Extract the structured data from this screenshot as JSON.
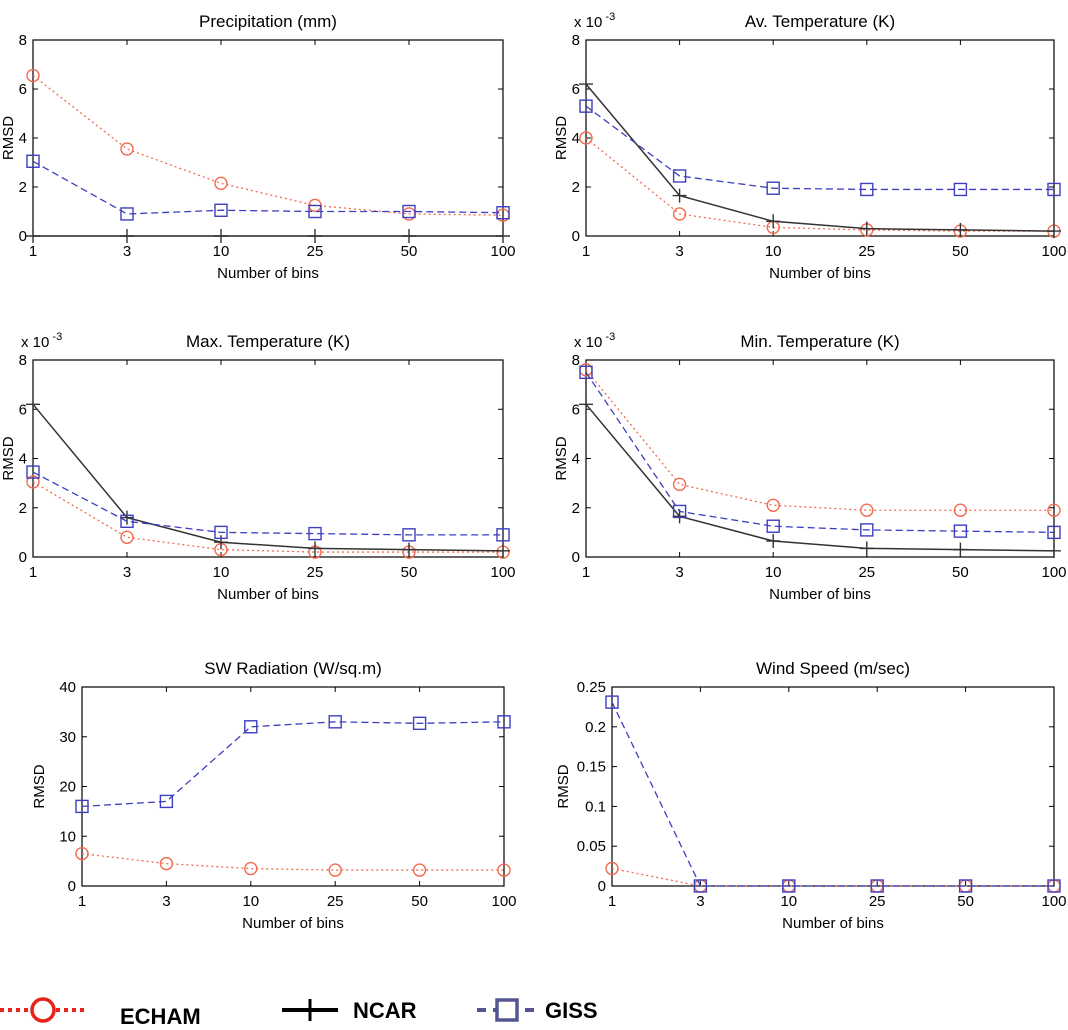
{
  "legend": {
    "items": [
      {
        "label": "ECHAM",
        "style": "echam"
      },
      {
        "label": "NCAR",
        "style": "ncar"
      },
      {
        "label": "GISS",
        "style": "giss"
      }
    ]
  },
  "series_styles": {
    "echam": {
      "color": "#f26b4f",
      "dash": "2,3",
      "marker": "circle"
    },
    "ncar": {
      "color": "#333333",
      "dash": "",
      "marker": "plus"
    },
    "giss": {
      "color": "#3b3fc0",
      "dash": "7,4",
      "marker": "square"
    }
  },
  "chart_data": [
    {
      "type": "line",
      "title": "Precipitation (mm)",
      "xlabel": "Number of bins",
      "ylabel": "RMSD",
      "exponent_label": "",
      "categories": [
        "1",
        "3",
        "10",
        "25",
        "50",
        "100"
      ],
      "ylim": [
        0,
        8
      ],
      "yticks": [
        0,
        2,
        4,
        6,
        8
      ],
      "yticklabels": [
        "0",
        "2",
        "4",
        "6",
        "8"
      ],
      "series": [
        {
          "style": "echam",
          "values": [
            6.55,
            3.55,
            2.15,
            1.25,
            0.9,
            0.85
          ]
        },
        {
          "style": "ncar",
          "values": [
            0,
            0,
            0,
            0,
            0,
            0
          ]
        },
        {
          "style": "giss",
          "values": [
            3.05,
            0.9,
            1.05,
            1.0,
            1.0,
            0.95
          ]
        }
      ]
    },
    {
      "type": "line",
      "title": "Av. Temperature (K)",
      "xlabel": "Number of bins",
      "ylabel": "RMSD",
      "exponent_label": "x 10",
      "exponent_power": "-3",
      "categories": [
        "1",
        "3",
        "10",
        "25",
        "50",
        "100"
      ],
      "ylim": [
        0,
        8
      ],
      "yticks": [
        0,
        2,
        4,
        6,
        8
      ],
      "yticklabels": [
        "0",
        "2",
        "4",
        "6",
        "8"
      ],
      "series": [
        {
          "style": "echam",
          "values": [
            4.0,
            0.9,
            0.35,
            0.25,
            0.2,
            0.2
          ]
        },
        {
          "style": "ncar",
          "values": [
            6.2,
            1.65,
            0.6,
            0.3,
            0.25,
            0.2
          ]
        },
        {
          "style": "giss",
          "values": [
            5.3,
            2.45,
            1.95,
            1.9,
            1.9,
            1.9
          ]
        }
      ]
    },
    {
      "type": "line",
      "title": "Max. Temperature (K)",
      "xlabel": "Number of bins",
      "ylabel": "RMSD",
      "exponent_label": "x 10",
      "exponent_power": "-3",
      "categories": [
        "1",
        "3",
        "10",
        "25",
        "50",
        "100"
      ],
      "ylim": [
        0,
        8
      ],
      "yticks": [
        0,
        2,
        4,
        6,
        8
      ],
      "yticklabels": [
        "0",
        "2",
        "4",
        "6",
        "8"
      ],
      "series": [
        {
          "style": "echam",
          "values": [
            3.05,
            0.8,
            0.3,
            0.2,
            0.2,
            0.2
          ]
        },
        {
          "style": "ncar",
          "values": [
            6.2,
            1.6,
            0.6,
            0.35,
            0.3,
            0.25
          ]
        },
        {
          "style": "giss",
          "values": [
            3.45,
            1.45,
            1.0,
            0.95,
            0.9,
            0.9
          ]
        }
      ]
    },
    {
      "type": "line",
      "title": "Min. Temperature (K)",
      "xlabel": "Number of bins",
      "ylabel": "RMSD",
      "exponent_label": "x 10",
      "exponent_power": "-3",
      "categories": [
        "1",
        "3",
        "10",
        "25",
        "50",
        "100"
      ],
      "ylim": [
        0,
        8
      ],
      "yticks": [
        0,
        2,
        4,
        6,
        8
      ],
      "yticklabels": [
        "0",
        "2",
        "4",
        "6",
        "8"
      ],
      "series": [
        {
          "style": "echam",
          "values": [
            7.6,
            2.95,
            2.1,
            1.9,
            1.9,
            1.9
          ]
        },
        {
          "style": "ncar",
          "values": [
            6.2,
            1.65,
            0.65,
            0.35,
            0.3,
            0.25
          ]
        },
        {
          "style": "giss",
          "values": [
            7.5,
            1.85,
            1.25,
            1.1,
            1.05,
            1.0
          ]
        }
      ]
    },
    {
      "type": "line",
      "title": "SW Radiation (W/sq.m)",
      "xlabel": "Number of bins",
      "ylabel": "RMSD",
      "exponent_label": "",
      "categories": [
        "1",
        "3",
        "10",
        "25",
        "50",
        "100"
      ],
      "ylim": [
        0,
        40
      ],
      "yticks": [
        0,
        10,
        20,
        30,
        40
      ],
      "yticklabels": [
        "0",
        "10",
        "20",
        "30",
        "40"
      ],
      "series": [
        {
          "style": "echam",
          "values": [
            6.5,
            4.5,
            3.5,
            3.2,
            3.2,
            3.2
          ]
        },
        {
          "style": "giss",
          "values": [
            16.0,
            17.0,
            32.0,
            33.0,
            32.7,
            33.0
          ]
        }
      ]
    },
    {
      "type": "line",
      "title": "Wind Speed (m/sec)",
      "xlabel": "Number of bins",
      "ylabel": "RMSD",
      "exponent_label": "",
      "categories": [
        "1",
        "3",
        "10",
        "25",
        "50",
        "100"
      ],
      "ylim": [
        0,
        0.25
      ],
      "yticks": [
        0,
        0.05,
        0.1,
        0.15,
        0.2,
        0.25
      ],
      "yticklabels": [
        "0",
        "0.05",
        "0.1",
        "0.15",
        "0.2",
        "0.25"
      ],
      "series": [
        {
          "style": "echam",
          "values": [
            0.022,
            0.0,
            0.0,
            0.0,
            0.0,
            0.0
          ]
        },
        {
          "style": "giss",
          "values": [
            0.231,
            0.0,
            0.0,
            0.0,
            0.0,
            0.0
          ]
        }
      ]
    }
  ]
}
